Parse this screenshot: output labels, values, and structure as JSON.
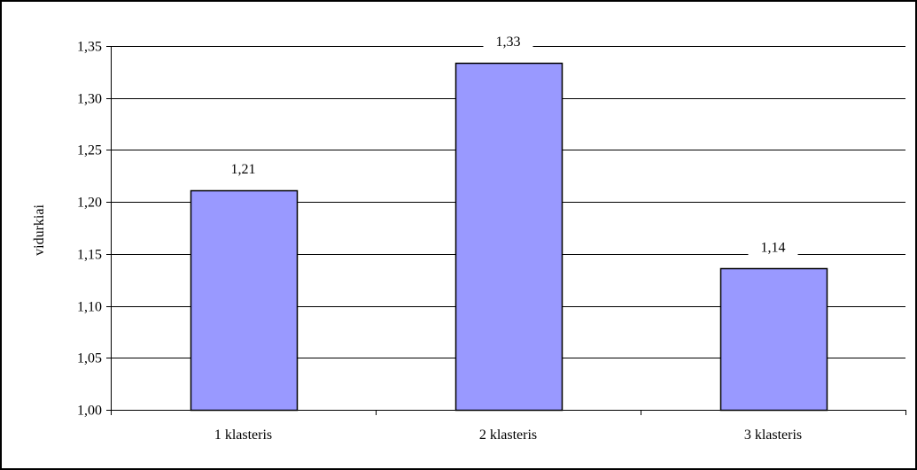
{
  "chart_data": {
    "type": "bar",
    "title": "",
    "xlabel": "",
    "ylabel": "vidurkiai",
    "categories": [
      "1 klasteris",
      "2 klasteris",
      "3 klasteris"
    ],
    "values": [
      1.211,
      1.334,
      1.136
    ],
    "data_labels": [
      "1,21",
      "1,33",
      "1,14"
    ],
    "ylim": [
      1.0,
      1.35
    ],
    "yticks": [
      1.0,
      1.05,
      1.1,
      1.15,
      1.2,
      1.25,
      1.3,
      1.35
    ],
    "ytick_labels": [
      "1,00",
      "1,05",
      "1,10",
      "1,15",
      "1,20",
      "1,25",
      "1,30",
      "1,35"
    ],
    "grid": true,
    "legend": "none",
    "colors": {
      "bar_fill": "#9999ff",
      "bar_stroke": "#000000",
      "gridline": "#000000",
      "background": "#ffffff"
    }
  }
}
